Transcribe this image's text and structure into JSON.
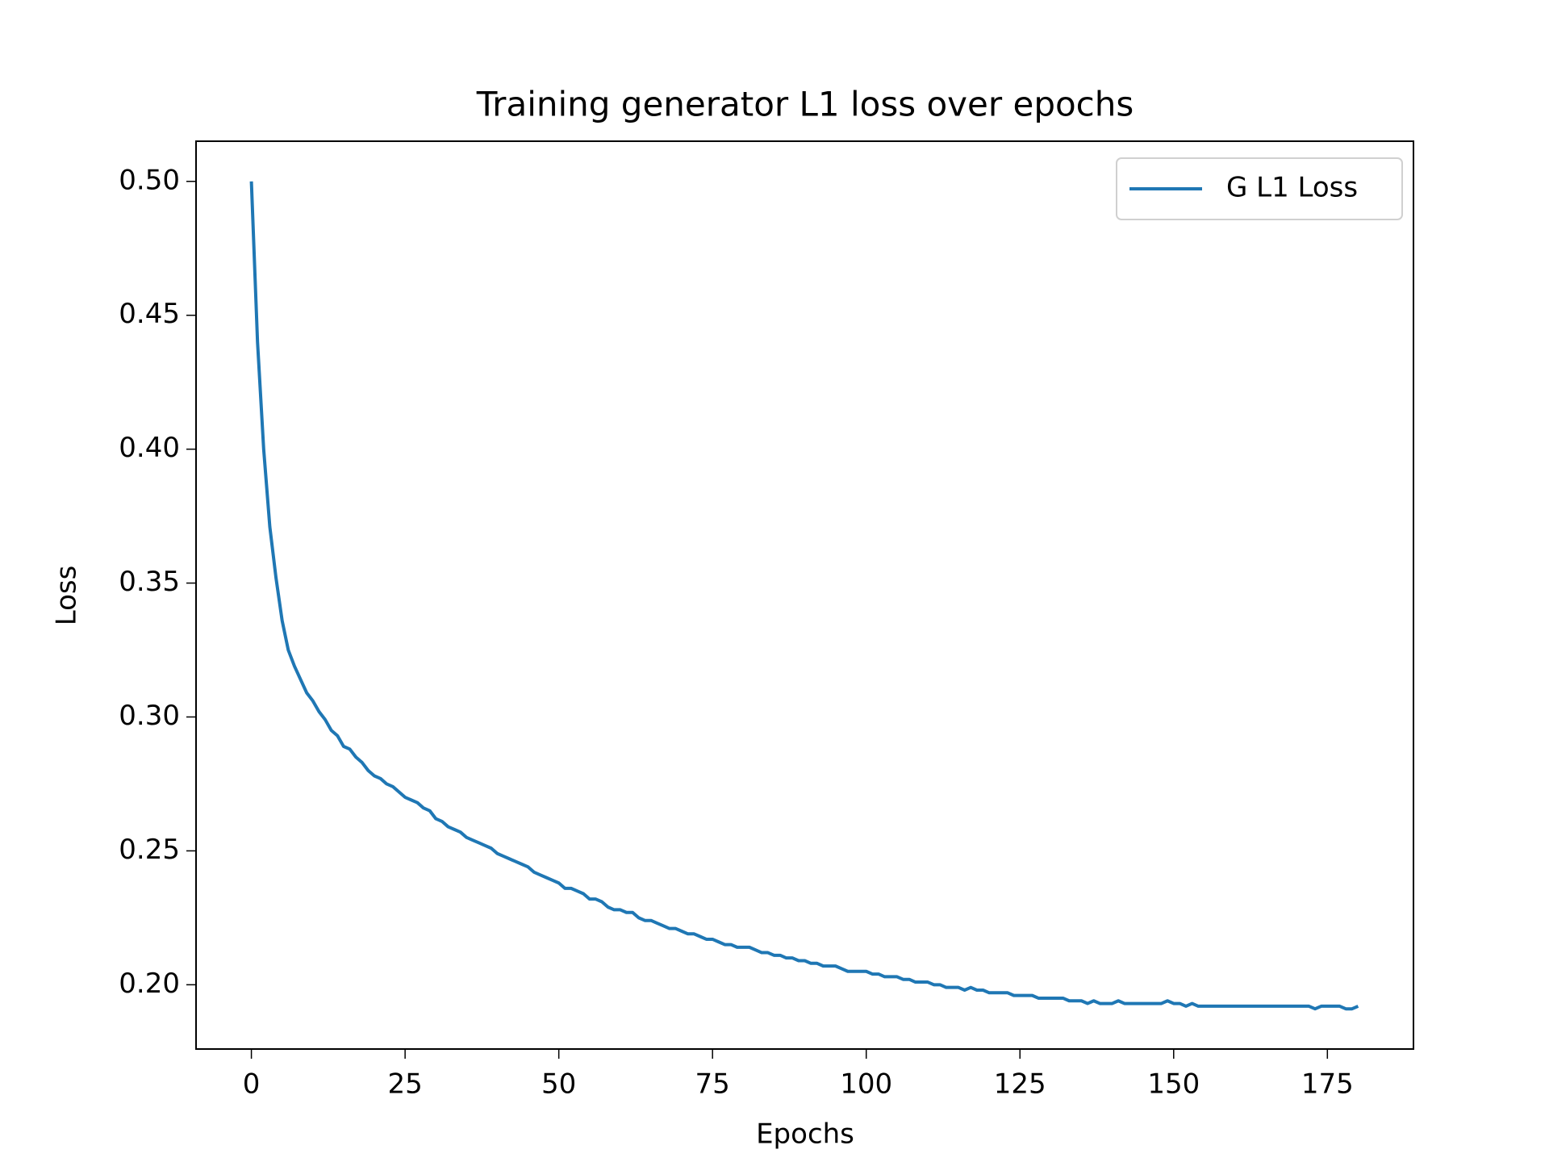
{
  "chart_data": {
    "type": "line",
    "title": "Training generator L1 loss over epochs",
    "x_label": "Epochs",
    "y_label": "Loss",
    "x": [
      0,
      1,
      2,
      3,
      4,
      5,
      6,
      7,
      8,
      9,
      10,
      11,
      12,
      13,
      14,
      15,
      16,
      17,
      18,
      19,
      20,
      21,
      22,
      23,
      24,
      25,
      26,
      27,
      28,
      29,
      30,
      31,
      32,
      33,
      34,
      35,
      36,
      37,
      38,
      39,
      40,
      41,
      42,
      43,
      44,
      45,
      46,
      47,
      48,
      49,
      50,
      51,
      52,
      53,
      54,
      55,
      56,
      57,
      58,
      59,
      60,
      61,
      62,
      63,
      64,
      65,
      66,
      67,
      68,
      69,
      70,
      71,
      72,
      73,
      74,
      75,
      76,
      77,
      78,
      79,
      80,
      81,
      82,
      83,
      84,
      85,
      86,
      87,
      88,
      89,
      90,
      91,
      92,
      93,
      94,
      95,
      96,
      97,
      98,
      99,
      100,
      101,
      102,
      103,
      104,
      105,
      106,
      107,
      108,
      109,
      110,
      111,
      112,
      113,
      114,
      115,
      116,
      117,
      118,
      119,
      120,
      121,
      122,
      123,
      124,
      125,
      126,
      127,
      128,
      129,
      130,
      131,
      132,
      133,
      134,
      135,
      136,
      137,
      138,
      139,
      140,
      141,
      142,
      143,
      144,
      145,
      146,
      147,
      148,
      149,
      150,
      151,
      152,
      153,
      154,
      155,
      156,
      157,
      158,
      159,
      160,
      161,
      162,
      163,
      164,
      165,
      166,
      167,
      168,
      169,
      170,
      171,
      172,
      173,
      174,
      175,
      176,
      177,
      178,
      179,
      180
    ],
    "series": [
      {
        "name": "G L1 Loss",
        "color": "#1f77b4",
        "values": [
          0.5,
          0.44,
          0.4,
          0.371,
          0.352,
          0.336,
          0.325,
          0.319,
          0.314,
          0.309,
          0.306,
          0.302,
          0.299,
          0.295,
          0.293,
          0.289,
          0.288,
          0.285,
          0.283,
          0.28,
          0.278,
          0.277,
          0.275,
          0.274,
          0.272,
          0.27,
          0.269,
          0.268,
          0.266,
          0.265,
          0.262,
          0.261,
          0.259,
          0.258,
          0.257,
          0.255,
          0.254,
          0.253,
          0.252,
          0.251,
          0.249,
          0.248,
          0.247,
          0.246,
          0.245,
          0.244,
          0.242,
          0.241,
          0.24,
          0.239,
          0.238,
          0.236,
          0.236,
          0.235,
          0.234,
          0.232,
          0.232,
          0.231,
          0.229,
          0.228,
          0.228,
          0.227,
          0.227,
          0.225,
          0.224,
          0.224,
          0.223,
          0.222,
          0.221,
          0.221,
          0.22,
          0.219,
          0.219,
          0.218,
          0.217,
          0.217,
          0.216,
          0.215,
          0.215,
          0.214,
          0.214,
          0.214,
          0.213,
          0.212,
          0.212,
          0.211,
          0.211,
          0.21,
          0.21,
          0.209,
          0.209,
          0.208,
          0.208,
          0.207,
          0.207,
          0.207,
          0.206,
          0.205,
          0.205,
          0.205,
          0.205,
          0.204,
          0.204,
          0.203,
          0.203,
          0.203,
          0.202,
          0.202,
          0.201,
          0.201,
          0.201,
          0.2,
          0.2,
          0.199,
          0.199,
          0.199,
          0.198,
          0.199,
          0.198,
          0.198,
          0.197,
          0.197,
          0.197,
          0.197,
          0.196,
          0.196,
          0.196,
          0.196,
          0.195,
          0.195,
          0.195,
          0.195,
          0.195,
          0.194,
          0.194,
          0.194,
          0.193,
          0.194,
          0.193,
          0.193,
          0.193,
          0.194,
          0.193,
          0.193,
          0.193,
          0.193,
          0.193,
          0.193,
          0.193,
          0.194,
          0.193,
          0.193,
          0.192,
          0.193,
          0.192,
          0.192,
          0.192,
          0.192,
          0.192,
          0.192,
          0.192,
          0.192,
          0.192,
          0.192,
          0.192,
          0.192,
          0.192,
          0.192,
          0.192,
          0.192,
          0.192,
          0.192,
          0.192,
          0.191,
          0.192,
          0.192,
          0.192,
          0.192,
          0.191,
          0.191,
          0.192
        ]
      }
    ],
    "xlim": [
      -9,
      189
    ],
    "ylim": [
      0.176,
      0.515
    ],
    "xticks": [
      0,
      25,
      50,
      75,
      100,
      125,
      150,
      175
    ],
    "yticks": [
      {
        "value": 0.2,
        "label": "0.20"
      },
      0.25,
      {
        "value": 0.3,
        "label": "0.30"
      },
      0.35,
      {
        "value": 0.4,
        "label": "0.40"
      },
      0.45,
      {
        "value": 0.5,
        "label": "0.50"
      }
    ],
    "grid": false,
    "legend": "upper right"
  }
}
